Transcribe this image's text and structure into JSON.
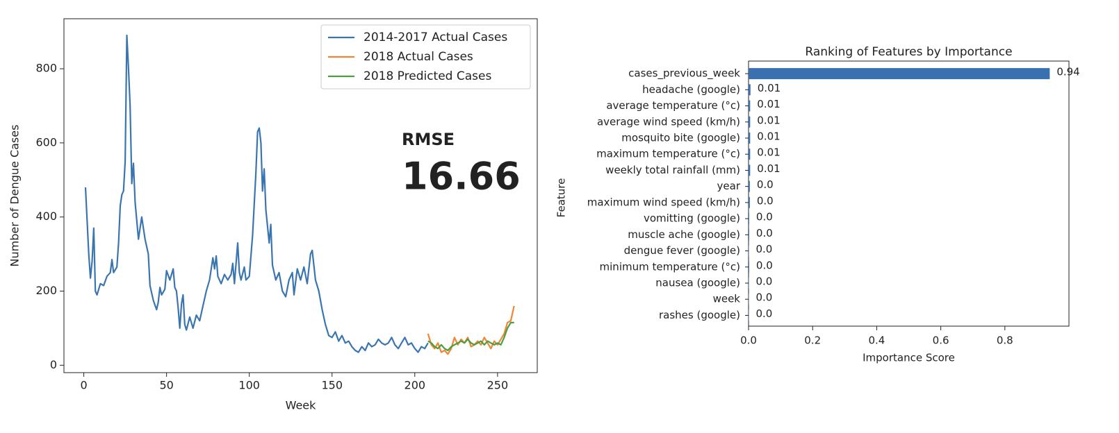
{
  "chart_data": [
    {
      "type": "line",
      "xlabel": "Week",
      "ylabel": "Number of Dengue Cases",
      "annotations": [
        "RMSE",
        "16.66"
      ],
      "xlim": [
        -12,
        274
      ],
      "ylim": [
        -20,
        935
      ],
      "xticks": [
        0,
        50,
        100,
        150,
        200,
        250
      ],
      "yticks": [
        0,
        200,
        400,
        600,
        800
      ],
      "legend": "upper right",
      "series": [
        {
          "name": "2014-2017 Actual Cases",
          "color": "#3a75b0",
          "x": [
            1,
            3,
            4,
            5,
            6,
            7,
            8,
            10,
            12,
            14,
            16,
            17,
            18,
            20,
            21,
            22,
            23,
            24,
            25,
            26,
            27,
            28,
            29,
            30,
            31,
            33,
            35,
            37,
            39,
            40,
            42,
            44,
            45,
            46,
            47,
            49,
            50,
            52,
            54,
            55,
            56,
            57,
            58,
            59,
            60,
            61,
            62,
            64,
            66,
            68,
            70,
            72,
            74,
            76,
            78,
            79,
            80,
            81,
            83,
            85,
            87,
            89,
            90,
            91,
            93,
            94,
            95,
            97,
            98,
            100,
            102,
            104,
            105,
            106,
            107,
            108,
            109,
            110,
            112,
            113,
            114,
            116,
            118,
            120,
            122,
            124,
            126,
            127,
            129,
            131,
            133,
            135,
            137,
            138,
            140,
            142,
            144,
            146,
            148,
            150,
            152,
            154,
            156,
            158,
            160,
            162,
            164,
            166,
            168,
            170,
            172,
            174,
            176,
            178,
            180,
            182,
            184,
            186,
            188,
            190,
            192,
            194,
            196,
            198,
            200,
            202,
            204,
            206,
            208
          ],
          "values": [
            480,
            300,
            235,
            280,
            370,
            200,
            190,
            220,
            215,
            240,
            250,
            285,
            250,
            265,
            330,
            430,
            460,
            470,
            550,
            890,
            800,
            700,
            490,
            545,
            440,
            340,
            400,
            340,
            300,
            215,
            175,
            150,
            170,
            210,
            190,
            205,
            255,
            230,
            260,
            210,
            200,
            155,
            100,
            165,
            190,
            110,
            95,
            130,
            100,
            135,
            120,
            160,
            200,
            230,
            290,
            260,
            295,
            240,
            220,
            245,
            230,
            245,
            275,
            220,
            330,
            250,
            230,
            265,
            230,
            240,
            350,
            520,
            630,
            640,
            600,
            470,
            530,
            420,
            330,
            380,
            270,
            230,
            250,
            200,
            185,
            230,
            250,
            190,
            260,
            230,
            265,
            220,
            300,
            310,
            230,
            200,
            150,
            110,
            80,
            75,
            90,
            65,
            80,
            60,
            65,
            50,
            40,
            35,
            50,
            40,
            60,
            50,
            55,
            70,
            60,
            55,
            60,
            75,
            55,
            45,
            60,
            75,
            55,
            60,
            45,
            35,
            50,
            45,
            60
          ]
        },
        {
          "name": "2018 Actual Cases",
          "color": "#ef8535",
          "x": [
            208,
            210,
            212,
            214,
            216,
            218,
            220,
            222,
            224,
            226,
            228,
            230,
            232,
            234,
            236,
            238,
            240,
            242,
            244,
            246,
            248,
            250,
            252,
            254,
            256,
            258,
            260
          ],
          "values": [
            85,
            55,
            45,
            60,
            35,
            40,
            30,
            45,
            75,
            55,
            70,
            60,
            75,
            50,
            55,
            65,
            55,
            75,
            60,
            45,
            65,
            55,
            70,
            85,
            115,
            120,
            160
          ]
        },
        {
          "name": "2018 Predicted Cases",
          "color": "#4a9e3f",
          "x": [
            208,
            210,
            212,
            214,
            216,
            218,
            220,
            222,
            224,
            226,
            228,
            230,
            232,
            234,
            236,
            238,
            240,
            242,
            244,
            246,
            248,
            250,
            252,
            254,
            256,
            258,
            260
          ],
          "values": [
            65,
            60,
            50,
            45,
            55,
            45,
            40,
            50,
            55,
            60,
            65,
            60,
            70,
            60,
            55,
            60,
            65,
            55,
            65,
            60,
            55,
            60,
            55,
            75,
            100,
            115,
            115
          ]
        }
      ]
    },
    {
      "type": "hbar",
      "title": "Ranking of Features by Importance",
      "xlabel": "Importance Score",
      "ylabel": "Feature",
      "color": "#3a6fb0",
      "xlim": [
        0,
        1.0
      ],
      "xticks": [
        {
          "value": 0,
          "label": "0.0"
        },
        0.2,
        0.4,
        0.6,
        0.8
      ],
      "categories": [
        "cases_previous_week",
        "headache (google)",
        "average temperature (°c)",
        "average wind speed (km/h)",
        "mosquito bite (google)",
        "maximum temperature (°c)",
        "weekly total rainfall (mm)",
        "year",
        "maximum wind speed (km/h)",
        "vomitting (google)",
        "muscle ache (google)",
        "dengue fever (google)",
        "minimum temperature (°c)",
        "nausea (google)",
        "week",
        "rashes (google)"
      ],
      "values": [
        0.94,
        0.006,
        0.005,
        0.005,
        0.005,
        0.005,
        0.005,
        0.004,
        0.004,
        0.002,
        0.002,
        0.001,
        0.002,
        0.001,
        0.001,
        0.001
      ],
      "value_labels": [
        "0.94",
        "0.01",
        "0.01",
        "0.01",
        "0.01",
        "0.01",
        "0.01",
        "0.0",
        "0.0",
        "0.0",
        "0.0",
        "0.0",
        "0.0",
        "0.0",
        "0.0",
        "0.0"
      ]
    }
  ]
}
